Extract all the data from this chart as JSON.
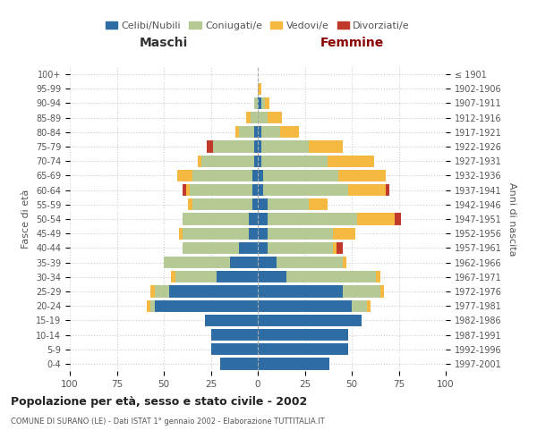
{
  "age_groups": [
    "0-4",
    "5-9",
    "10-14",
    "15-19",
    "20-24",
    "25-29",
    "30-34",
    "35-39",
    "40-44",
    "45-49",
    "50-54",
    "55-59",
    "60-64",
    "65-69",
    "70-74",
    "75-79",
    "80-84",
    "85-89",
    "90-94",
    "95-99",
    "100+"
  ],
  "birth_years": [
    "1997-2001",
    "1992-1996",
    "1987-1991",
    "1982-1986",
    "1977-1981",
    "1972-1976",
    "1967-1971",
    "1962-1966",
    "1957-1961",
    "1952-1956",
    "1947-1951",
    "1942-1946",
    "1937-1941",
    "1932-1936",
    "1927-1931",
    "1922-1926",
    "1917-1921",
    "1912-1916",
    "1907-1911",
    "1902-1906",
    "≤ 1901"
  ],
  "maschi": {
    "celibi": [
      20,
      25,
      25,
      28,
      55,
      47,
      22,
      15,
      10,
      5,
      5,
      3,
      3,
      3,
      2,
      2,
      2,
      0,
      0,
      0,
      0
    ],
    "coniugati": [
      0,
      0,
      0,
      0,
      2,
      8,
      22,
      35,
      30,
      35,
      35,
      32,
      33,
      32,
      28,
      22,
      8,
      4,
      2,
      0,
      0
    ],
    "vedovi": [
      0,
      0,
      0,
      0,
      2,
      2,
      2,
      0,
      0,
      2,
      0,
      2,
      2,
      8,
      2,
      0,
      2,
      2,
      0,
      0,
      0
    ],
    "divorziati": [
      0,
      0,
      0,
      0,
      0,
      0,
      0,
      0,
      0,
      0,
      0,
      0,
      2,
      0,
      0,
      3,
      0,
      0,
      0,
      0,
      0
    ]
  },
  "femmine": {
    "nubili": [
      38,
      48,
      48,
      55,
      50,
      45,
      15,
      10,
      5,
      5,
      5,
      5,
      3,
      3,
      2,
      2,
      2,
      0,
      2,
      0,
      0
    ],
    "coniugate": [
      0,
      0,
      0,
      0,
      8,
      20,
      48,
      35,
      35,
      35,
      48,
      22,
      45,
      40,
      35,
      25,
      10,
      5,
      2,
      0,
      0
    ],
    "vedove": [
      0,
      0,
      0,
      0,
      2,
      2,
      2,
      2,
      2,
      12,
      20,
      10,
      20,
      25,
      25,
      18,
      10,
      8,
      2,
      2,
      0
    ],
    "divorziate": [
      0,
      0,
      0,
      0,
      0,
      0,
      0,
      0,
      3,
      0,
      3,
      0,
      2,
      0,
      0,
      0,
      0,
      0,
      0,
      0,
      0
    ]
  },
  "colors": {
    "celibi_nubili": "#2e6da4",
    "coniugati": "#b5c994",
    "vedovi": "#f5b942",
    "divorziati": "#c0392b"
  },
  "title": "Popolazione per età, sesso e stato civile - 2002",
  "subtitle": "COMUNE DI SURANO (LE) - Dati ISTAT 1° gennaio 2002 - Elaborazione TUTTITALIA.IT",
  "xlabel_left": "Maschi",
  "xlabel_right": "Femmine",
  "ylabel_left": "Fasce di età",
  "ylabel_right": "Anni di nascita",
  "xlim": 100,
  "bg_color": "#ffffff",
  "grid_color": "#cccccc"
}
